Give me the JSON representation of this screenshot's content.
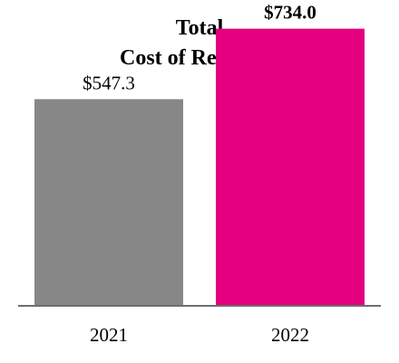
{
  "chart_data": {
    "type": "bar",
    "title": [
      "Total",
      "Cost of Revenues"
    ],
    "categories": [
      "2021",
      "2022"
    ],
    "values": [
      547.3,
      734.0
    ],
    "data_labels": [
      "$547.3",
      "$734.0"
    ],
    "data_label_bold": [
      false,
      true
    ],
    "colors": [
      "#878787",
      "#e4007f"
    ],
    "axis_color": "#6e6e6e",
    "ylim": [
      0,
      810
    ],
    "grid": false,
    "legend": "none"
  }
}
